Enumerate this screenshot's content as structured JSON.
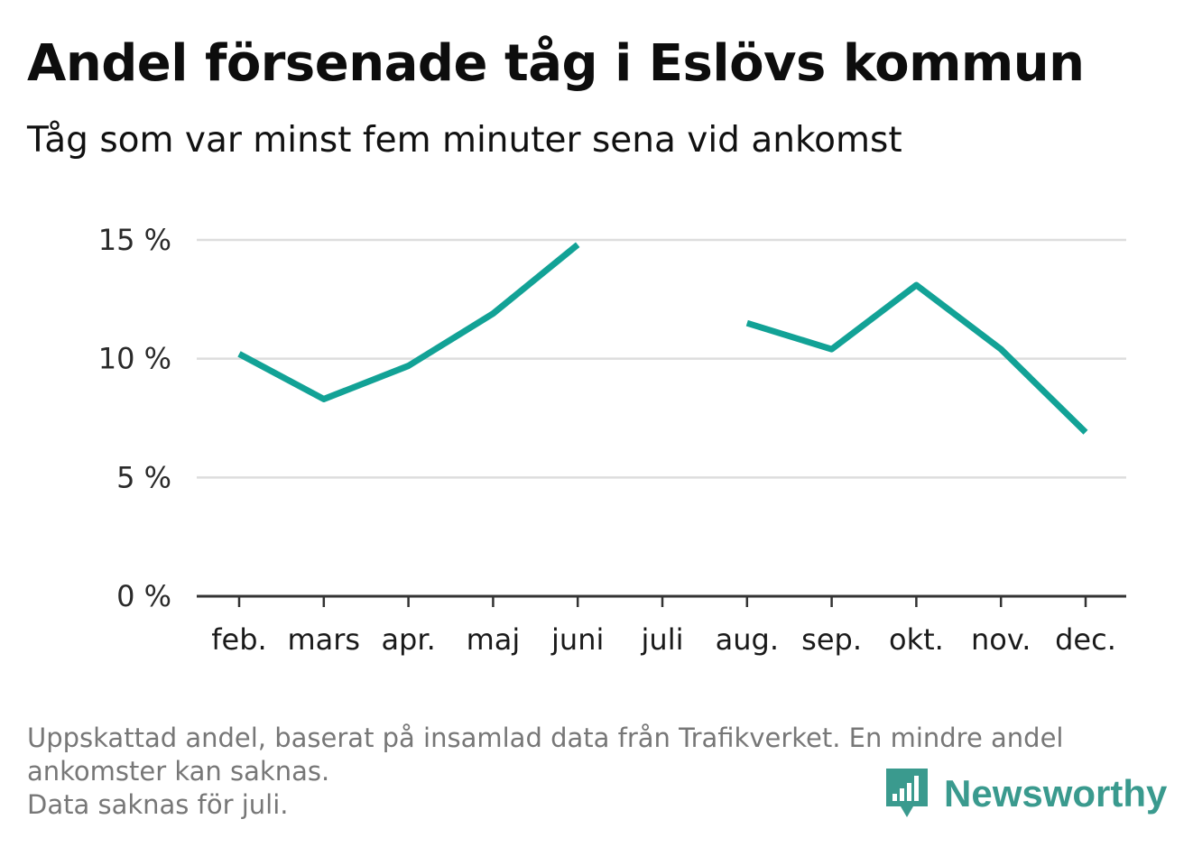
{
  "header": {
    "title": "Andel försenade tåg i Eslövs kommun",
    "subtitle": "Tåg som var minst fem minuter sena vid ankomst"
  },
  "chart_data": {
    "type": "line",
    "categories": [
      "feb.",
      "mars",
      "apr.",
      "maj",
      "juni",
      "juli",
      "aug.",
      "sep.",
      "okt.",
      "nov.",
      "dec."
    ],
    "series": [
      {
        "values": [
          10.2,
          8.3,
          9.7,
          11.9,
          14.8,
          null,
          11.5,
          10.4,
          13.1,
          10.4,
          6.9
        ]
      }
    ],
    "ylim": [
      0,
      15
    ],
    "yticks": [
      0,
      5,
      10,
      15
    ],
    "ytick_labels": [
      "0 %",
      "5 %",
      "10 %",
      "15 %"
    ],
    "grid": true,
    "xlabel": "",
    "ylabel": ""
  },
  "colors": {
    "line": "#12a296",
    "grid": "#dddddd",
    "axis": "#333333",
    "brand": "#3a9a8e"
  },
  "footer": {
    "note_lines": [
      "Uppskattad andel, baserat på insamlad data från Trafikverket. En mindre andel",
      "ankomster kan saknas.",
      "Data saknas för juli."
    ]
  },
  "brand": {
    "name": "Newsworthy",
    "icon": "bar-chart-speech-bubble-icon"
  }
}
